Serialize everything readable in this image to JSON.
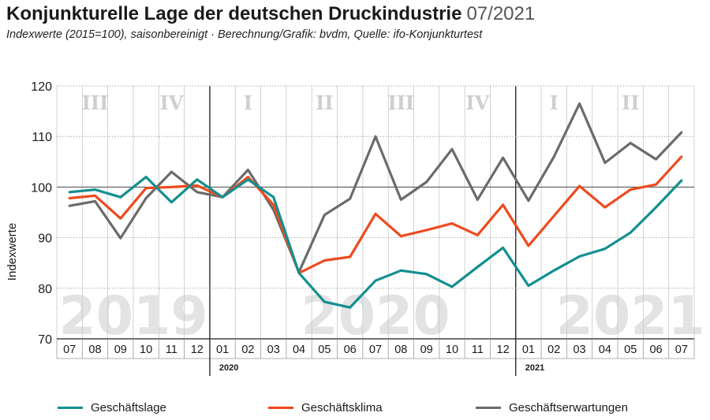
{
  "title": "Konjunkturelle Lage der deutschen Druckindustrie",
  "title_date": "07/2021",
  "subtitle": "Indexwerte (2015=100), saisonbereinigt · Berechnung/Grafik: bvdm, Quelle: ifo-Konjunkturtest",
  "chart_data": {
    "type": "line",
    "ylabel": "Indexwerte",
    "ylim": [
      70,
      120
    ],
    "yticks": [
      70,
      80,
      90,
      100,
      110,
      120
    ],
    "grid": true,
    "legend_position": "bottom",
    "x": [
      "07",
      "08",
      "09",
      "10",
      "11",
      "12",
      "01",
      "02",
      "03",
      "04",
      "05",
      "06",
      "07",
      "08",
      "09",
      "10",
      "11",
      "12",
      "01",
      "02",
      "03",
      "04",
      "05",
      "06",
      "07"
    ],
    "year_labels": [
      {
        "label": "2020",
        "index": 6
      },
      {
        "label": "2021",
        "index": 18
      }
    ],
    "background_years": [
      {
        "label": "2019",
        "center_index": 2.5
      },
      {
        "label": "2020",
        "center_index": 12
      },
      {
        "label": "2021",
        "center_index": 22
      }
    ],
    "quarters": [
      {
        "label": "III",
        "center_index": 1
      },
      {
        "label": "IV",
        "center_index": 4
      },
      {
        "label": "I",
        "center_index": 7
      },
      {
        "label": "II",
        "center_index": 10
      },
      {
        "label": "III",
        "center_index": 13
      },
      {
        "label": "IV",
        "center_index": 16
      },
      {
        "label": "I",
        "center_index": 19
      },
      {
        "label": "II",
        "center_index": 22
      }
    ],
    "series": [
      {
        "name": "Geschäftslage",
        "color": "#138f8f",
        "values": [
          99.0,
          99.5,
          98.0,
          102.0,
          97.0,
          101.5,
          98.0,
          101.5,
          98.0,
          83.0,
          77.3,
          76.2,
          81.5,
          83.5,
          82.8,
          80.3,
          84.2,
          88.0,
          80.5,
          83.5,
          86.3,
          87.8,
          91.0,
          96.0,
          101.3
        ]
      },
      {
        "name": "Geschäftsklima",
        "color": "#ee4a1f",
        "values": [
          97.8,
          98.3,
          93.8,
          99.8,
          100.0,
          100.3,
          98.0,
          102.0,
          96.5,
          83.0,
          85.5,
          86.2,
          94.7,
          90.3,
          91.5,
          92.8,
          90.5,
          96.5,
          88.4,
          94.3,
          100.2,
          96.0,
          99.5,
          100.5,
          106.0
        ]
      },
      {
        "name": "Geschäftserwartungen",
        "color": "#6b6b6b",
        "values": [
          96.3,
          97.2,
          89.9,
          97.8,
          103.0,
          99.0,
          98.0,
          103.4,
          95.5,
          83.2,
          94.5,
          97.7,
          110.0,
          97.5,
          101.0,
          107.5,
          97.5,
          105.8,
          97.3,
          106.0,
          116.5,
          104.8,
          108.7,
          105.5,
          110.8
        ]
      }
    ]
  }
}
